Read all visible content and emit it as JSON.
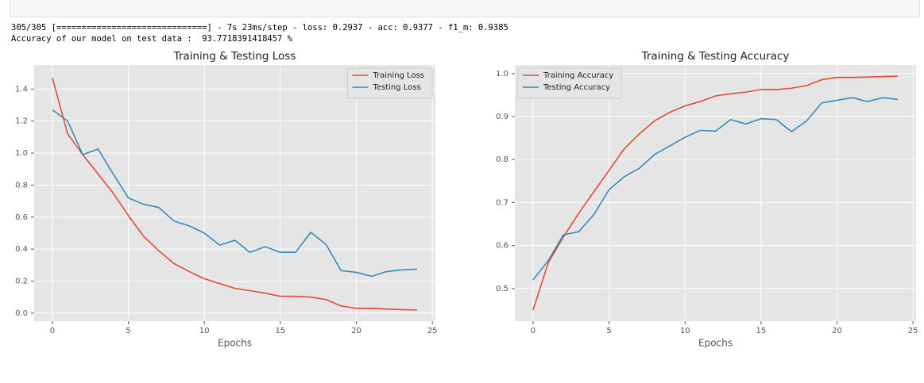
{
  "console": {
    "lines": [
      "305/305 [==============================] - 7s 23ms/step - loss: 0.2937 - acc: 0.9377 - f1_m: 0.9385",
      "Accuracy of our model on test data :  93.7718391418457 %"
    ]
  },
  "chart_data": [
    {
      "type": "line",
      "title": "Training & Testing Loss",
      "x_label": "Epochs",
      "x": [
        0,
        1,
        2,
        3,
        4,
        5,
        6,
        7,
        8,
        9,
        10,
        11,
        12,
        13,
        14,
        15,
        16,
        17,
        18,
        19,
        20,
        21,
        22,
        23,
        24
      ],
      "series": [
        {
          "name": "Training Loss",
          "color": "#E24A33",
          "values": [
            1.47,
            1.12,
            0.99,
            0.87,
            0.75,
            0.61,
            0.48,
            0.39,
            0.31,
            0.26,
            0.215,
            0.185,
            0.155,
            0.14,
            0.125,
            0.105,
            0.105,
            0.1,
            0.085,
            0.045,
            0.03,
            0.03,
            0.025,
            0.022,
            0.02
          ]
        },
        {
          "name": "Testing Loss",
          "color": "#348ABD",
          "values": [
            1.27,
            1.2,
            0.99,
            1.025,
            0.87,
            0.72,
            0.68,
            0.66,
            0.575,
            0.545,
            0.5,
            0.425,
            0.455,
            0.38,
            0.415,
            0.38,
            0.38,
            0.505,
            0.43,
            0.265,
            0.255,
            0.23,
            0.26,
            0.27,
            0.275
          ]
        }
      ],
      "xlim": [
        -1.2,
        25.2
      ],
      "xticks": [
        0,
        5,
        10,
        15,
        20,
        25
      ],
      "ylim": [
        -0.05,
        1.55
      ],
      "yticks": [
        {
          "value": 0,
          "label": "0.0"
        },
        0.2,
        0.4,
        0.6,
        0.8,
        {
          "value": 1,
          "label": "1.0"
        },
        1.2,
        1.4
      ],
      "grid": true,
      "legend": "upper-right"
    },
    {
      "type": "line",
      "title": "Training & Testing Accuracy",
      "x_label": "Epochs",
      "x": [
        0,
        1,
        2,
        3,
        4,
        5,
        6,
        7,
        8,
        9,
        10,
        11,
        12,
        13,
        14,
        15,
        16,
        17,
        18,
        19,
        20,
        21,
        22,
        23,
        24
      ],
      "series": [
        {
          "name": "Training Accuracy",
          "color": "#E24A33",
          "values": [
            0.45,
            0.56,
            0.62,
            0.675,
            0.725,
            0.775,
            0.825,
            0.86,
            0.89,
            0.91,
            0.925,
            0.935,
            0.948,
            0.953,
            0.957,
            0.963,
            0.963,
            0.966,
            0.972,
            0.986,
            0.991,
            0.991,
            0.992,
            0.993,
            0.994
          ]
        },
        {
          "name": "Testing Accuracy",
          "color": "#348ABD",
          "values": [
            0.52,
            0.565,
            0.625,
            0.632,
            0.672,
            0.73,
            0.76,
            0.78,
            0.812,
            0.832,
            0.852,
            0.868,
            0.866,
            0.893,
            0.883,
            0.895,
            0.893,
            0.865,
            0.89,
            0.932,
            0.938,
            0.944,
            0.935,
            0.944,
            0.94
          ]
        }
      ],
      "xlim": [
        -1.2,
        25.2
      ],
      "xticks": [
        0,
        5,
        10,
        15,
        20,
        25
      ],
      "ylim": [
        0.424,
        1.02
      ],
      "yticks": [
        0.5,
        0.6,
        0.7,
        0.8,
        0.9,
        {
          "value": 1,
          "label": "1.0"
        }
      ],
      "grid": true,
      "legend": "upper-left"
    }
  ]
}
